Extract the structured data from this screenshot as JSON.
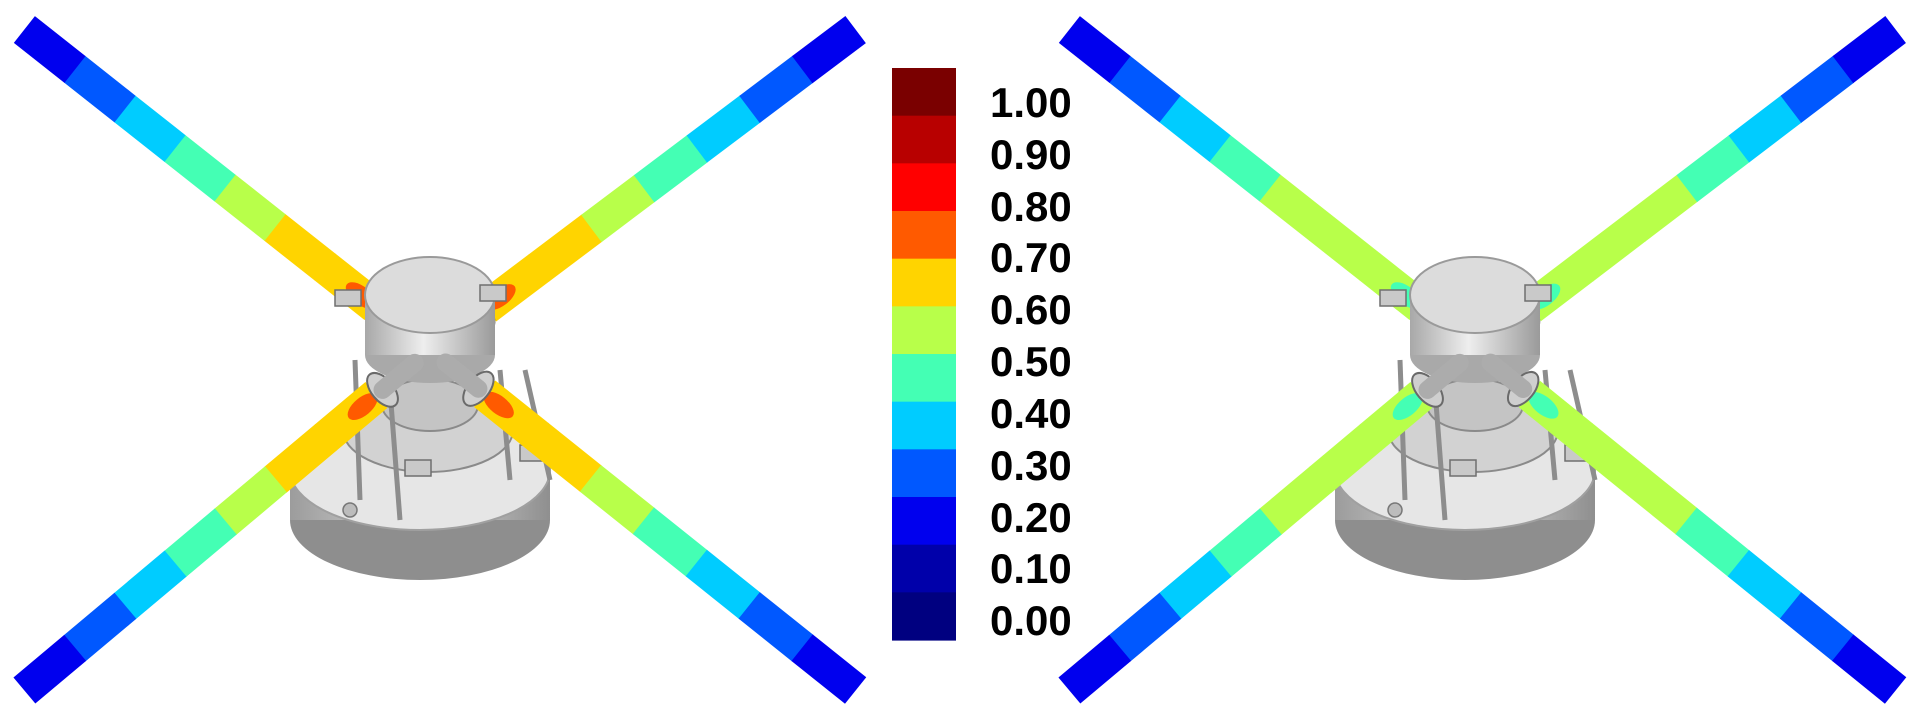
{
  "colorbar": {
    "ticks": [
      "1.00",
      "0.90",
      "0.80",
      "0.70",
      "0.60",
      "0.50",
      "0.40",
      "0.30",
      "0.20",
      "0.10",
      "0.00"
    ],
    "bands_top_to_bottom": [
      "#7a0000",
      "#b80000",
      "#ff0000",
      "#ff5a00",
      "#ffd400",
      "#b8ff4a",
      "#44ffb4",
      "#00ccff",
      "#0058ff",
      "#0000ee",
      "#0000aa",
      "#000080"
    ]
  },
  "panels": [
    {
      "view": "left-rotor",
      "blade_colors_hub_to_tip": [
        "#ffd400",
        "#ffd400",
        "#b8ff4a",
        "#44ffb4",
        "#00ccff",
        "#0058ff",
        "#0000ee"
      ],
      "root_hotspot_color": "#ff5a00"
    },
    {
      "view": "right-rotor",
      "blade_colors_hub_to_tip": [
        "#b8ff4a",
        "#b8ff4a",
        "#b8ff4a",
        "#44ffb4",
        "#00ccff",
        "#0058ff",
        "#0000ee"
      ],
      "root_hotspot_color": "#44ffb4"
    }
  ],
  "hub_color": "#d9d9d9"
}
